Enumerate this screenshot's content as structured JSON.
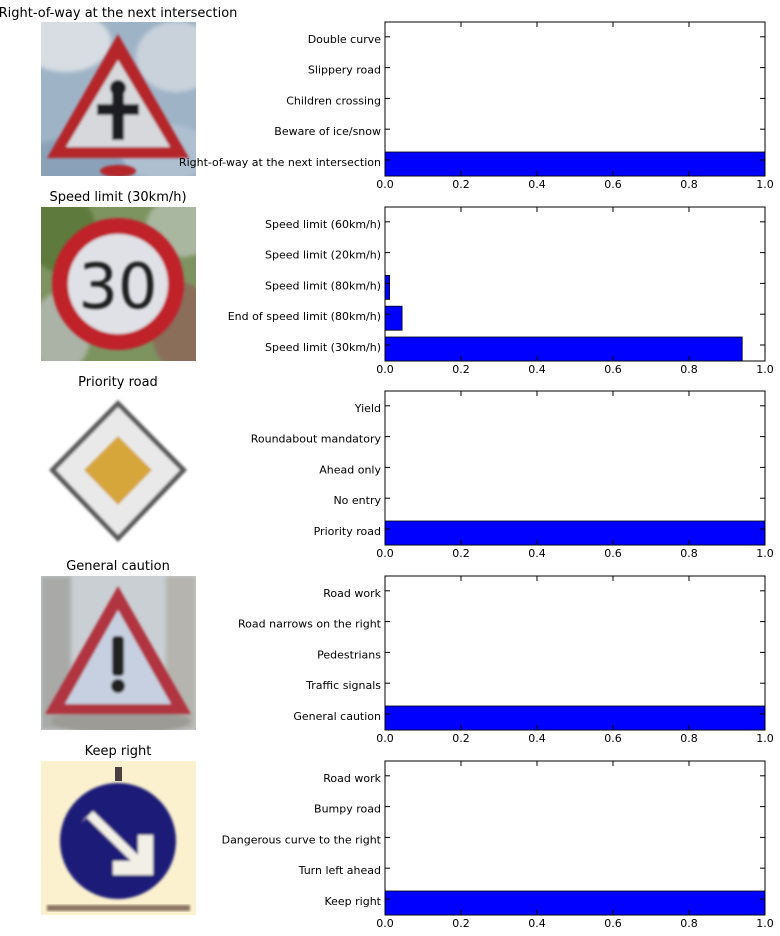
{
  "colors": {
    "bar": "#0000ff",
    "bar_edge": "#000000"
  },
  "chart_data": [
    {
      "type": "bar",
      "orientation": "horizontal",
      "title": "Right-of-way at the next intersection",
      "categories": [
        "Right-of-way at the next intersection",
        "Beware of ice/snow",
        "Children crossing",
        "Slippery road",
        "Double curve"
      ],
      "values": [
        1.0,
        0.0,
        0.0,
        0.0,
        0.0
      ],
      "xlim": [
        0.0,
        1.0
      ],
      "xticks": [
        "0.0",
        "0.2",
        "0.4",
        "0.6",
        "0.8",
        "1.0"
      ],
      "grid": false,
      "image_icon": "right-of-way-sign"
    },
    {
      "type": "bar",
      "orientation": "horizontal",
      "title": "Speed limit (30km/h)",
      "categories": [
        "Speed limit (30km/h)",
        "End of speed limit (80km/h)",
        "Speed limit (80km/h)",
        "Speed limit (20km/h)",
        "Speed limit (60km/h)"
      ],
      "values": [
        0.94,
        0.045,
        0.012,
        0.0,
        0.0
      ],
      "xlim": [
        0.0,
        1.0
      ],
      "xticks": [
        "0.0",
        "0.2",
        "0.4",
        "0.6",
        "0.8",
        "1.0"
      ],
      "grid": false,
      "image_icon": "speed-limit-30-sign"
    },
    {
      "type": "bar",
      "orientation": "horizontal",
      "title": "Priority road",
      "categories": [
        "Priority road",
        "No entry",
        "Ahead only",
        "Roundabout mandatory",
        "Yield"
      ],
      "values": [
        1.0,
        0.0,
        0.0,
        0.0,
        0.0
      ],
      "xlim": [
        0.0,
        1.0
      ],
      "xticks": [
        "0.0",
        "0.2",
        "0.4",
        "0.6",
        "0.8",
        "1.0"
      ],
      "grid": false,
      "image_icon": "priority-road-sign"
    },
    {
      "type": "bar",
      "orientation": "horizontal",
      "title": "General caution",
      "categories": [
        "General caution",
        "Traffic signals",
        "Pedestrians",
        "Road narrows on the right",
        "Road work"
      ],
      "values": [
        1.0,
        0.0,
        0.0,
        0.0,
        0.0
      ],
      "xlim": [
        0.0,
        1.0
      ],
      "xticks": [
        "0.0",
        "0.2",
        "0.4",
        "0.6",
        "0.8",
        "1.0"
      ],
      "grid": false,
      "image_icon": "general-caution-sign"
    },
    {
      "type": "bar",
      "orientation": "horizontal",
      "title": "Keep right",
      "categories": [
        "Keep right",
        "Turn left ahead",
        "Dangerous curve to the right",
        "Bumpy road",
        "Road work"
      ],
      "values": [
        1.0,
        0.0,
        0.0,
        0.0,
        0.0
      ],
      "xlim": [
        0.0,
        1.0
      ],
      "xticks": [
        "0.0",
        "0.2",
        "0.4",
        "0.6",
        "0.8",
        "1.0"
      ],
      "grid": false,
      "image_icon": "keep-right-sign"
    }
  ]
}
